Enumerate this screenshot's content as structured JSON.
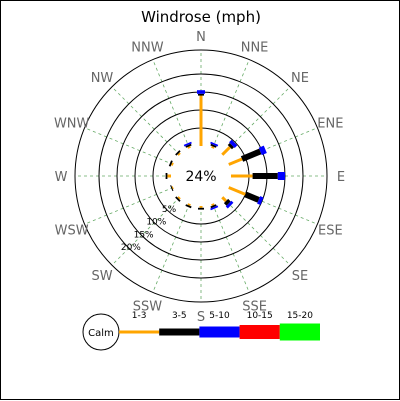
{
  "chart_data": {
    "type": "windrose",
    "title": "Windrose (mph)",
    "directions": [
      "N",
      "NNE",
      "NE",
      "ENE",
      "E",
      "ESE",
      "SE",
      "SSE",
      "S",
      "SSW",
      "SW",
      "WSW",
      "W",
      "WNW",
      "NW",
      "NNW"
    ],
    "ring_labels": [
      "5%",
      "10%",
      "15%",
      "20%"
    ],
    "rings_percent": [
      5,
      10,
      15,
      20
    ],
    "calm_percent": 24,
    "calm_label": "24%",
    "grid": true,
    "speed_bins": [
      {
        "range": "1-3",
        "color": "#ffa500"
      },
      {
        "range": "3-5",
        "color": "#000000"
      },
      {
        "range": "5-10",
        "color": "#0000ff"
      },
      {
        "range": "10-15",
        "color": "#ff0000"
      },
      {
        "range": "15-20",
        "color": "#00ff00"
      }
    ],
    "legend_calm_label": "Calm",
    "legend_placement": "bottom",
    "series": [
      {
        "direction": "N",
        "values": [
          14,
          0.5,
          1.0,
          0,
          0
        ]
      },
      {
        "direction": "NNE",
        "values": [
          0.5,
          0.5,
          0.5,
          0,
          0
        ]
      },
      {
        "direction": "NE",
        "values": [
          3.0,
          0.8,
          1.0,
          0,
          0
        ]
      },
      {
        "direction": "ENE",
        "values": [
          4.0,
          5.5,
          1.5,
          0,
          0
        ]
      },
      {
        "direction": "E",
        "values": [
          6.0,
          7.0,
          2.0,
          0,
          0
        ]
      },
      {
        "direction": "ESE",
        "values": [
          5.0,
          4.0,
          1.0,
          0,
          0
        ]
      },
      {
        "direction": "SE",
        "values": [
          1.5,
          1.0,
          0.8,
          0,
          0
        ]
      },
      {
        "direction": "SSE",
        "values": [
          0.5,
          0.5,
          0.5,
          0,
          0
        ]
      },
      {
        "direction": "S",
        "values": [
          0.5,
          0.5,
          0,
          0,
          0
        ]
      },
      {
        "direction": "SSW",
        "values": [
          0.5,
          0.5,
          0,
          0,
          0
        ]
      },
      {
        "direction": "SW",
        "values": [
          0.5,
          0.5,
          0,
          0,
          0
        ]
      },
      {
        "direction": "WSW",
        "values": [
          0.3,
          0.3,
          0,
          0,
          0
        ]
      },
      {
        "direction": "W",
        "values": [
          1.0,
          0.5,
          0,
          0,
          0
        ]
      },
      {
        "direction": "WNW",
        "values": [
          0.5,
          0.5,
          0,
          0,
          0
        ]
      },
      {
        "direction": "NW",
        "values": [
          0.5,
          0.5,
          0,
          0,
          0
        ]
      },
      {
        "direction": "NNW",
        "values": [
          0.5,
          0.5,
          0.5,
          0,
          0
        ]
      }
    ]
  }
}
